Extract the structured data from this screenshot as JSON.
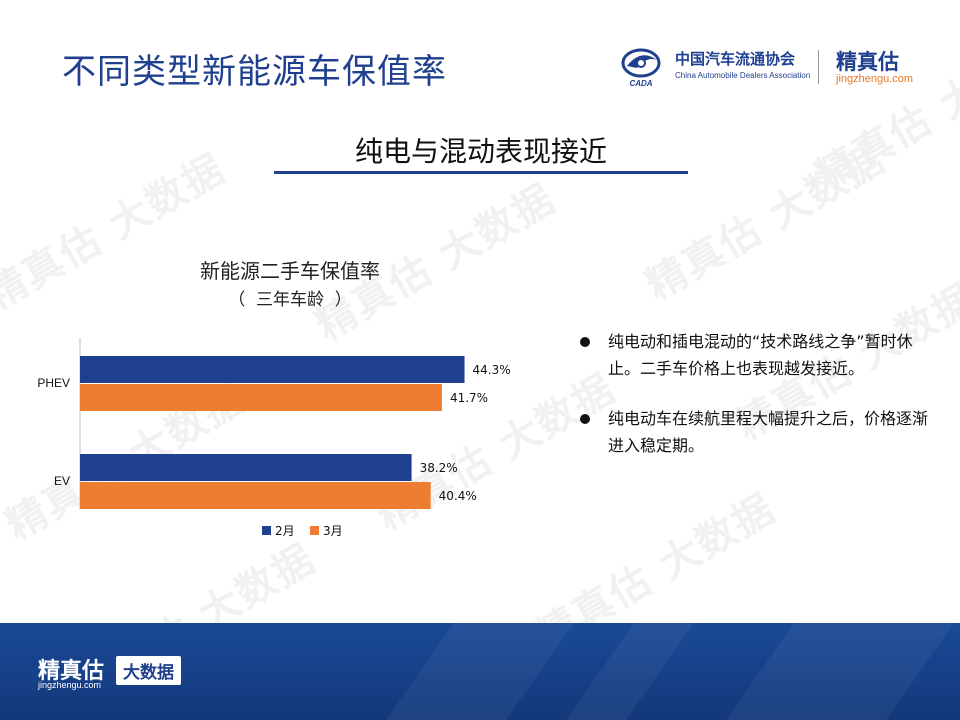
{
  "header": {
    "title": "不同类型新能源车保值率",
    "cada_name_cn": "中国汽车流通协会",
    "cada_name_en": "China Automobile Dealers Association",
    "cada_emblem_text": "CADA",
    "brand_cn": "精真估",
    "brand_url": "jingzhengu.com"
  },
  "subtitle": "纯电与混动表现接近",
  "bullets": [
    "纯电动和插电混动的“技术路线之争”暂时休止。二手车价格上也表现越发接近。",
    "纯电动车在续航里程大幅提升之后，价格逐渐进入稳定期。"
  ],
  "footer": {
    "brand_cn": "精真估",
    "brand_url": "jingzhengu.com",
    "badge": "大数据"
  },
  "watermark_text": "精真估 大数据",
  "colors": {
    "primary_blue": "#1f3f8f",
    "orange": "#ed7d31",
    "footer_blue": "#163f86"
  },
  "chart_data": {
    "type": "bar",
    "orientation": "horizontal",
    "title": "新能源二手车保值率",
    "subtitle": "（  三年车龄  ）",
    "categories": [
      "PHEV",
      "EV"
    ],
    "series": [
      {
        "name": "2月",
        "values": [
          44.3,
          38.2
        ],
        "labels": [
          "44.3%",
          "38.2%"
        ],
        "color": "#1f3f8f"
      },
      {
        "name": "3月",
        "values": [
          41.7,
          40.4
        ],
        "labels": [
          "41.7%",
          "40.4%"
        ],
        "color": "#ed7d31"
      }
    ],
    "xlim": [
      0,
      50
    ],
    "grid": false,
    "legend_position": "bottom"
  }
}
